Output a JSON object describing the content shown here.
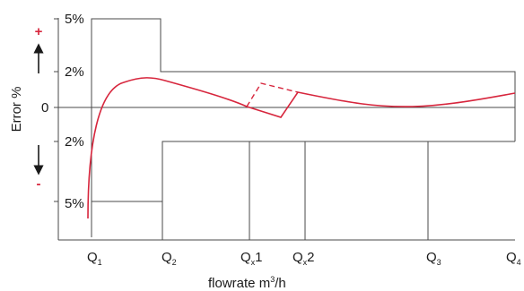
{
  "y_axis": {
    "title": "Error %",
    "plus_sign": "+",
    "minus_sign": "-",
    "ticks": [
      "5%",
      "2%",
      "0",
      "2%",
      "5%"
    ]
  },
  "x_axis": {
    "title_prefix": "flowrate m",
    "title_sup": "3",
    "title_suffix": "/h",
    "ticks": [
      {
        "main": "Q",
        "sub": "1",
        "after": ""
      },
      {
        "main": "Q",
        "sub": "2",
        "after": ""
      },
      {
        "main": "Q",
        "sub": "x",
        "after": "1"
      },
      {
        "main": "Q",
        "sub": "x",
        "after": "2"
      },
      {
        "main": "Q",
        "sub": "3",
        "after": ""
      },
      {
        "main": "Q",
        "sub": "4",
        "after": ""
      }
    ]
  },
  "colors": {
    "curve": "#d7263d",
    "frame": "#4a4a4a",
    "arrow": "#1a1a1a",
    "sign": "#d7263d"
  }
}
